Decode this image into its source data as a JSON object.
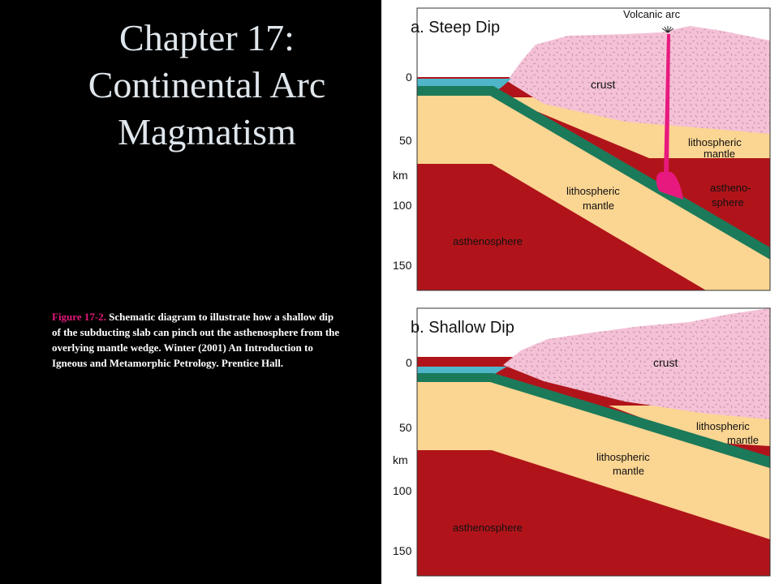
{
  "slide": {
    "title_line1": "Chapter 17:",
    "title_line2": "Continental Arc",
    "title_line3": "Magmatism"
  },
  "caption": {
    "figure_ref": "Figure 17-2.",
    "text": " Schematic diagram to illustrate how a shallow dip of the subducting slab can pinch out the asthenosphere from the overlying mantle wedge. Winter (2001) An Introduction to Igneous and Metamorphic Petrology. Prentice Hall."
  },
  "panel_a": {
    "heading": "a.  Steep Dip",
    "volcano_label": "Volcanic arc",
    "depth_ticks": [
      "0",
      "50",
      "km",
      "100",
      "150"
    ],
    "labels": {
      "crust": "crust",
      "lith_right_1": "lithospheric",
      "lith_right_2": "mantle",
      "lith_slab_1": "lithospheric",
      "lith_slab_2": "mantle",
      "astheno_right_1": "astheno-",
      "astheno_right_2": "sphere",
      "astheno_left": "asthenosphere"
    }
  },
  "panel_b": {
    "heading": "b.  Shallow Dip",
    "depth_ticks": [
      "0",
      "50",
      "km",
      "100",
      "150"
    ],
    "labels": {
      "crust": "crust",
      "lith_right_1": "lithospheric",
      "lith_right_2": "mantle",
      "lith_slab_1": "lithospheric",
      "lith_slab_2": "mantle",
      "astheno_left": "asthenosphere"
    }
  },
  "colors": {
    "crust": "#f4c1d6",
    "lithospheric_mantle": "#fbd592",
    "asthenosphere": "#b0141a",
    "oceanic_crust": "#1b7a5a",
    "ocean": "#4fb6c9",
    "magma": "#e8197e"
  }
}
